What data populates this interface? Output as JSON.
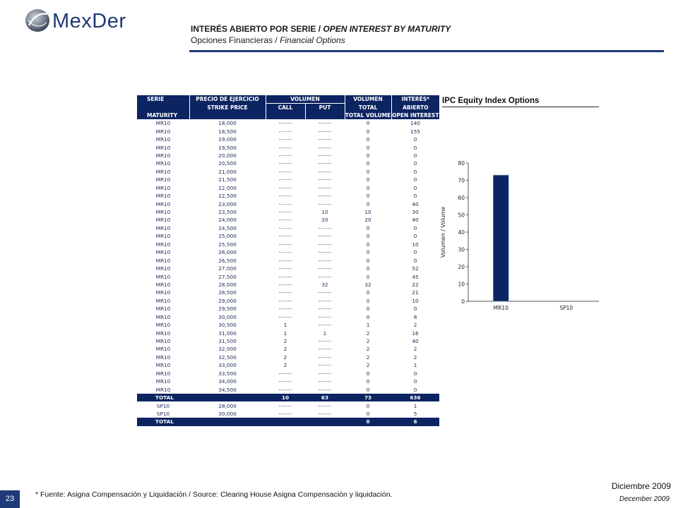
{
  "brand": {
    "name": "MexDer"
  },
  "header": {
    "title_es": "INTERÉS ABIERTO POR SERIE / ",
    "title_en": "OPEN INTEREST BY MATURITY",
    "subtitle_es": "Opciones Financieras / ",
    "subtitle_en": "Financial Options"
  },
  "table": {
    "headers": {
      "serie": "SERIE",
      "maturity": "MATURITY",
      "precio": "PRECIO DE EJERCICIO",
      "strike": "STRIKE PRICE",
      "volumen": "VOLUMEN",
      "call": "CALL",
      "put": "PUT",
      "volumen2": "VOLUMEN",
      "total": "TOTAL",
      "total_volume": "TOTAL VOLUME",
      "interes": "INTERÉS*",
      "abierto": "ABIERTO",
      "open_interest": "OPEN INTEREST"
    },
    "rows": [
      [
        "MR10",
        "18,000",
        "------",
        "------",
        "0",
        "140"
      ],
      [
        "MR10",
        "18,500",
        "------",
        "------",
        "0",
        "155"
      ],
      [
        "MR10",
        "19,000",
        "------",
        "------",
        "0",
        "0"
      ],
      [
        "MR10",
        "19,500",
        "------",
        "------",
        "0",
        "0"
      ],
      [
        "MR10",
        "20,000",
        "------",
        "------",
        "0",
        "0"
      ],
      [
        "MR10",
        "20,500",
        "------",
        "------",
        "0",
        "0"
      ],
      [
        "MR10",
        "21,000",
        "------",
        "------",
        "0",
        "0"
      ],
      [
        "MR10",
        "21,500",
        "------",
        "------",
        "0",
        "0"
      ],
      [
        "MR10",
        "22,000",
        "------",
        "------",
        "0",
        "0"
      ],
      [
        "MR10",
        "22,500",
        "------",
        "------",
        "0",
        "0"
      ],
      [
        "MR10",
        "23,000",
        "------",
        "------",
        "0",
        "40"
      ],
      [
        "MR10",
        "23,500",
        "------",
        "10",
        "10",
        "30"
      ],
      [
        "MR10",
        "24,000",
        "------",
        "20",
        "20",
        "40"
      ],
      [
        "MR10",
        "24,500",
        "------",
        "------",
        "0",
        "0"
      ],
      [
        "MR10",
        "25,000",
        "------",
        "------",
        "0",
        "0"
      ],
      [
        "MR10",
        "25,500",
        "------",
        "------",
        "0",
        "10"
      ],
      [
        "MR10",
        "26,000",
        "------",
        "------",
        "0",
        "0"
      ],
      [
        "MR10",
        "26,500",
        "------",
        "------",
        "0",
        "0"
      ],
      [
        "MR10",
        "27,000",
        "------",
        "------",
        "0",
        "52"
      ],
      [
        "MR10",
        "27,500",
        "------",
        "------",
        "0",
        "45"
      ],
      [
        "MR10",
        "28,000",
        "------",
        "32",
        "32",
        "22"
      ],
      [
        "MR10",
        "28,500",
        "------",
        "------",
        "0",
        "21"
      ],
      [
        "MR10",
        "29,000",
        "------",
        "------",
        "0",
        "10"
      ],
      [
        "MR10",
        "29,500",
        "------",
        "------",
        "0",
        "0"
      ],
      [
        "MR10",
        "30,000",
        "------",
        "------",
        "0",
        "8"
      ],
      [
        "MR10",
        "30,500",
        "1",
        "------",
        "1",
        "2"
      ],
      [
        "MR10",
        "31,000",
        "1",
        "1",
        "2",
        "16"
      ],
      [
        "MR10",
        "31,500",
        "2",
        "------",
        "2",
        "40"
      ],
      [
        "MR10",
        "32,000",
        "2",
        "------",
        "2",
        "2"
      ],
      [
        "MR10",
        "32,500",
        "2",
        "------",
        "2",
        "2"
      ],
      [
        "MR10",
        "33,000",
        "2",
        "------",
        "2",
        "1"
      ],
      [
        "MR10",
        "33,500",
        "------",
        "------",
        "0",
        "0"
      ],
      [
        "MR10",
        "34,000",
        "------",
        "------",
        "0",
        "0"
      ],
      [
        "MR10",
        "34,500",
        "------",
        "------",
        "0",
        "0"
      ]
    ],
    "total_mr10": [
      "TOTAL",
      "",
      "10",
      "63",
      "73",
      "636"
    ],
    "rows_sp10": [
      [
        "SP10",
        "28,000",
        "------",
        "------",
        "0",
        "1"
      ],
      [
        "SP10",
        "30,000",
        "------",
        "------",
        "0",
        "5"
      ]
    ],
    "total_sp10": [
      "TOTAL",
      "",
      "",
      "",
      "0",
      "6"
    ]
  },
  "chart_data": {
    "type": "bar",
    "title": "IPC Equity Index Options",
    "ylabel": "Volumen / Volume",
    "categories": [
      "MR10",
      "SP10"
    ],
    "values": [
      73,
      0
    ],
    "ylim": [
      0,
      80
    ],
    "yticks": [
      0,
      10,
      20,
      30,
      40,
      50,
      60,
      70,
      80
    ],
    "bar_color": "#0c2461"
  },
  "footer": {
    "page": "23",
    "note": "* Fuente: Asigna Compensación y Liquidación / Source: Clearing House Asigna Compensación y liquidación.",
    "date_es": "Diciembre 2009",
    "date_en": "December 2009"
  }
}
